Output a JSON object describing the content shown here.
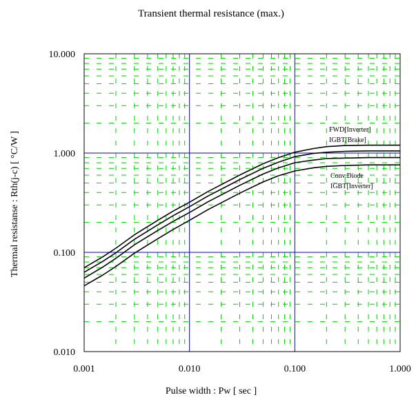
{
  "chart_data": {
    "type": "line",
    "title": "Transient thermal resistance (max.)",
    "xlabel": "Pulse width  :  Pw  [ sec ]",
    "ylabel": "Thermal resistanse  :  Rth(j-c)  [ °C/W ]",
    "x_scale": "log",
    "y_scale": "log",
    "xlim": [
      0.001,
      1.0
    ],
    "ylim": [
      0.01,
      10.0
    ],
    "x_ticks": [
      "0.001",
      "0.010",
      "0.100",
      "1.000"
    ],
    "y_ticks": [
      "10.000",
      "1.000",
      "0.100",
      "0.010"
    ],
    "grid": true,
    "major_grid_color": "#0000cc",
    "minor_grid_color": "#00cc00",
    "line_color": "#000000",
    "labels": {
      "upper_group": [
        "FWD[Inverter]",
        "IGBT[Brake]"
      ],
      "lower_group": [
        "Conv.Diode",
        "IGBT[Inverter]"
      ]
    },
    "series": [
      {
        "name": "FWD[Inverter]",
        "x": [
          0.001,
          0.0015,
          0.002,
          0.003,
          0.005,
          0.007,
          0.01,
          0.015,
          0.02,
          0.03,
          0.05,
          0.07,
          0.1,
          0.15,
          0.2,
          0.3,
          0.5,
          0.7,
          1.0
        ],
        "values": [
          0.07,
          0.09,
          0.11,
          0.15,
          0.21,
          0.26,
          0.32,
          0.41,
          0.48,
          0.6,
          0.78,
          0.9,
          1.02,
          1.11,
          1.16,
          1.19,
          1.2,
          1.2,
          1.2
        ]
      },
      {
        "name": "IGBT[Brake]",
        "x": [
          0.001,
          0.0015,
          0.002,
          0.003,
          0.005,
          0.007,
          0.01,
          0.015,
          0.02,
          0.03,
          0.05,
          0.07,
          0.1,
          0.15,
          0.2,
          0.3,
          0.5,
          0.7,
          1.0
        ],
        "values": [
          0.063,
          0.081,
          0.099,
          0.135,
          0.189,
          0.234,
          0.288,
          0.369,
          0.432,
          0.54,
          0.702,
          0.81,
          0.92,
          0.99,
          1.02,
          1.04,
          1.05,
          1.05,
          1.05
        ]
      },
      {
        "name": "Conv.Diode",
        "x": [
          0.001,
          0.0015,
          0.002,
          0.003,
          0.005,
          0.007,
          0.01,
          0.015,
          0.02,
          0.03,
          0.05,
          0.07,
          0.1,
          0.15,
          0.2,
          0.3,
          0.5,
          0.7,
          1.0
        ],
        "values": [
          0.055,
          0.071,
          0.087,
          0.119,
          0.166,
          0.205,
          0.252,
          0.323,
          0.378,
          0.473,
          0.615,
          0.709,
          0.8,
          0.85,
          0.88,
          0.89,
          0.9,
          0.9,
          0.9
        ]
      },
      {
        "name": "IGBT[Inverter]",
        "x": [
          0.001,
          0.0015,
          0.002,
          0.003,
          0.005,
          0.007,
          0.01,
          0.015,
          0.02,
          0.03,
          0.05,
          0.07,
          0.1,
          0.15,
          0.2,
          0.3,
          0.5,
          0.7,
          1.0
        ],
        "values": [
          0.046,
          0.059,
          0.072,
          0.098,
          0.137,
          0.17,
          0.21,
          0.269,
          0.315,
          0.394,
          0.512,
          0.591,
          0.66,
          0.71,
          0.735,
          0.75,
          0.76,
          0.76,
          0.76
        ]
      }
    ]
  }
}
